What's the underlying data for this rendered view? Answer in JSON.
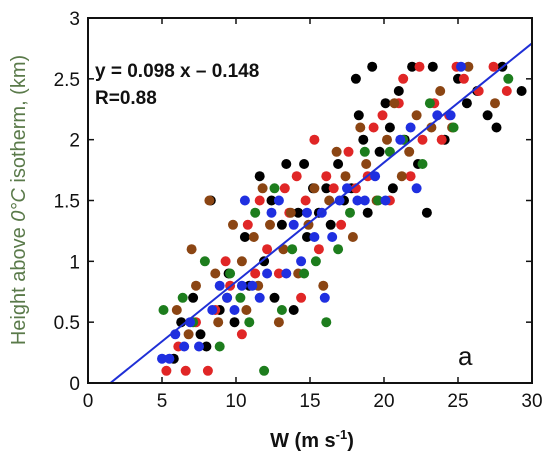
{
  "chart_data": {
    "type": "scatter",
    "title": "",
    "xlabel": "W (m s",
    "xlabel_sup": "-1",
    "xlabel_end": ")",
    "ylabel_1": "Height above ",
    "ylabel_2": "0°C",
    "ylabel_3": " isotherm, (km)",
    "xlim": [
      0,
      30
    ],
    "ylim": [
      0,
      3
    ],
    "xticks": [
      0,
      5,
      10,
      15,
      20,
      25,
      30
    ],
    "yticks": [
      0,
      0.5,
      1,
      1.5,
      2,
      2.5,
      3
    ],
    "ytick_labels": [
      "0",
      "0.5",
      "1",
      "1.5",
      "2",
      "2.5",
      "3"
    ],
    "grid": false,
    "equation": "y = 0.098 x – 0.148",
    "r_value": "R=0.88",
    "panel_label": "a",
    "fit_line": {
      "slope": 0.098,
      "intercept": -0.148,
      "color": "#1f2fd6"
    },
    "series": [
      {
        "color": "#000000",
        "points": [
          [
            5.8,
            0.2
          ],
          [
            6.3,
            0.5
          ],
          [
            7.1,
            0.7
          ],
          [
            7.6,
            0.4
          ],
          [
            8.0,
            0.3
          ],
          [
            8.3,
            1.5
          ],
          [
            8.9,
            0.6
          ],
          [
            9.5,
            0.9
          ],
          [
            9.9,
            0.5
          ],
          [
            10.6,
            1.2
          ],
          [
            10.9,
            0.8
          ],
          [
            11.6,
            1.7
          ],
          [
            11.9,
            1.0
          ],
          [
            12.4,
            1.5
          ],
          [
            12.6,
            0.7
          ],
          [
            13.1,
            1.3
          ],
          [
            13.4,
            1.8
          ],
          [
            13.9,
            0.6
          ],
          [
            14.2,
            1.4
          ],
          [
            14.6,
            1.8
          ],
          [
            14.8,
            1.2
          ],
          [
            15.2,
            1.6
          ],
          [
            15.6,
            1.4
          ],
          [
            16.1,
            1.6
          ],
          [
            16.4,
            1.3
          ],
          [
            16.9,
            1.8
          ],
          [
            17.3,
            1.5
          ],
          [
            17.8,
            1.6
          ],
          [
            18.1,
            2.5
          ],
          [
            18.3,
            2.2
          ],
          [
            18.6,
            2.0
          ],
          [
            18.9,
            1.4
          ],
          [
            19.2,
            2.6
          ],
          [
            19.7,
            1.9
          ],
          [
            20.1,
            2.3
          ],
          [
            20.4,
            2.1
          ],
          [
            20.6,
            1.6
          ],
          [
            21.0,
            2.4
          ],
          [
            21.4,
            2.0
          ],
          [
            21.9,
            2.6
          ],
          [
            22.3,
            1.8
          ],
          [
            22.9,
            1.4
          ],
          [
            23.3,
            2.6
          ],
          [
            24.1,
            2.0
          ],
          [
            25.0,
            2.5
          ],
          [
            25.6,
            2.3
          ],
          [
            26.3,
            2.4
          ],
          [
            27.0,
            2.2
          ],
          [
            27.6,
            2.1
          ],
          [
            28.0,
            2.6
          ],
          [
            29.3,
            2.4
          ]
        ]
      },
      {
        "color": "#e02626",
        "points": [
          [
            5.3,
            0.1
          ],
          [
            6.1,
            0.3
          ],
          [
            6.6,
            0.1
          ],
          [
            7.3,
            0.5
          ],
          [
            8.1,
            0.1
          ],
          [
            8.6,
            0.6
          ],
          [
            9.3,
            1.0
          ],
          [
            9.6,
            0.8
          ],
          [
            10.4,
            0.4
          ],
          [
            10.8,
            1.3
          ],
          [
            11.3,
            0.9
          ],
          [
            11.6,
            1.5
          ],
          [
            12.1,
            1.1
          ],
          [
            12.9,
            0.9
          ],
          [
            13.3,
            1.6
          ],
          [
            13.6,
            1.4
          ],
          [
            14.1,
            1.7
          ],
          [
            14.4,
            0.7
          ],
          [
            14.7,
            1.5
          ],
          [
            15.3,
            2.0
          ],
          [
            15.6,
            1.1
          ],
          [
            16.1,
            1.7
          ],
          [
            16.6,
            1.6
          ],
          [
            17.1,
            1.3
          ],
          [
            17.6,
            1.9
          ],
          [
            18.1,
            1.6
          ],
          [
            18.9,
            1.7
          ],
          [
            19.3,
            2.1
          ],
          [
            19.9,
            2.2
          ],
          [
            20.4,
            1.5
          ],
          [
            21.0,
            2.3
          ],
          [
            21.3,
            2.5
          ],
          [
            21.8,
            1.7
          ],
          [
            22.4,
            2.6
          ],
          [
            22.6,
            2.0
          ],
          [
            23.4,
            2.3
          ],
          [
            23.9,
            2.0
          ],
          [
            24.4,
            2.2
          ],
          [
            24.9,
            2.6
          ],
          [
            25.4,
            2.5
          ],
          [
            26.4,
            2.4
          ],
          [
            27.4,
            2.6
          ],
          [
            28.3,
            2.4
          ]
        ]
      },
      {
        "color": "#8b4513",
        "points": [
          [
            6.0,
            0.6
          ],
          [
            6.8,
            0.4
          ],
          [
            7.0,
            1.1
          ],
          [
            7.3,
            0.8
          ],
          [
            8.2,
            1.5
          ],
          [
            8.6,
            0.9
          ],
          [
            8.8,
            0.5
          ],
          [
            9.4,
            0.7
          ],
          [
            9.8,
            1.3
          ],
          [
            10.4,
            1.0
          ],
          [
            10.7,
            0.6
          ],
          [
            11.2,
            1.2
          ],
          [
            11.5,
            0.8
          ],
          [
            11.8,
            1.6
          ],
          [
            12.3,
            1.3
          ],
          [
            12.9,
            0.5
          ],
          [
            13.2,
            1.1
          ],
          [
            13.7,
            1.4
          ],
          [
            14.2,
            0.9
          ],
          [
            14.9,
            1.3
          ],
          [
            15.3,
            1.6
          ],
          [
            15.9,
            0.8
          ],
          [
            16.3,
            1.5
          ],
          [
            16.8,
            1.9
          ],
          [
            17.4,
            1.7
          ],
          [
            17.9,
            1.2
          ],
          [
            18.4,
            2.1
          ],
          [
            18.8,
            1.8
          ],
          [
            19.5,
            1.5
          ],
          [
            20.2,
            2.0
          ],
          [
            20.7,
            2.3
          ],
          [
            21.2,
            1.7
          ],
          [
            21.7,
            1.9
          ],
          [
            22.2,
            2.2
          ],
          [
            23.2,
            2.1
          ],
          [
            23.8,
            2.4
          ],
          [
            24.6,
            2.1
          ],
          [
            25.7,
            2.6
          ],
          [
            27.5,
            2.3
          ]
        ]
      },
      {
        "color": "#1d7d1d",
        "points": [
          [
            5.1,
            0.6
          ],
          [
            6.4,
            0.7
          ],
          [
            7.1,
            0.5
          ],
          [
            7.9,
            1.0
          ],
          [
            8.9,
            0.3
          ],
          [
            9.6,
            0.9
          ],
          [
            10.3,
            0.7
          ],
          [
            10.9,
            0.5
          ],
          [
            11.3,
            1.4
          ],
          [
            11.9,
            0.1
          ],
          [
            12.6,
            1.6
          ],
          [
            13.1,
            0.6
          ],
          [
            13.8,
            1.1
          ],
          [
            14.6,
            0.9
          ],
          [
            15.4,
            1.0
          ],
          [
            16.1,
            0.5
          ],
          [
            16.9,
            1.1
          ],
          [
            17.7,
            1.4
          ],
          [
            18.7,
            1.9
          ],
          [
            19.6,
            1.5
          ],
          [
            20.4,
            1.9
          ],
          [
            21.3,
            2.0
          ],
          [
            22.6,
            1.8
          ],
          [
            23.1,
            2.3
          ],
          [
            24.7,
            2.1
          ],
          [
            28.4,
            2.5
          ]
        ]
      },
      {
        "color": "#1f2fe0",
        "points": [
          [
            5.0,
            0.2
          ],
          [
            5.5,
            0.2
          ],
          [
            5.9,
            0.4
          ],
          [
            6.5,
            0.3
          ],
          [
            6.9,
            0.5
          ],
          [
            7.5,
            0.3
          ],
          [
            8.4,
            0.6
          ],
          [
            8.9,
            0.8
          ],
          [
            9.4,
            0.7
          ],
          [
            9.9,
            0.6
          ],
          [
            10.4,
            0.8
          ],
          [
            10.6,
            1.5
          ],
          [
            11.1,
            0.8
          ],
          [
            11.6,
            0.7
          ],
          [
            12.1,
            0.9
          ],
          [
            12.4,
            1.4
          ],
          [
            12.9,
            1.5
          ],
          [
            13.4,
            0.9
          ],
          [
            13.9,
            1.3
          ],
          [
            14.4,
            1.0
          ],
          [
            14.8,
            1.4
          ],
          [
            15.3,
            1.2
          ],
          [
            15.8,
            1.4
          ],
          [
            16.0,
            0.7
          ],
          [
            16.5,
            1.2
          ],
          [
            17.0,
            1.5
          ],
          [
            17.5,
            1.6
          ],
          [
            18.2,
            1.5
          ],
          [
            18.7,
            1.5
          ],
          [
            19.4,
            1.7
          ],
          [
            20.1,
            1.5
          ],
          [
            21.1,
            2.0
          ],
          [
            21.8,
            2.1
          ],
          [
            22.2,
            1.6
          ],
          [
            23.6,
            2.2
          ],
          [
            24.5,
            2.2
          ],
          [
            25.2,
            2.6
          ]
        ]
      }
    ]
  }
}
